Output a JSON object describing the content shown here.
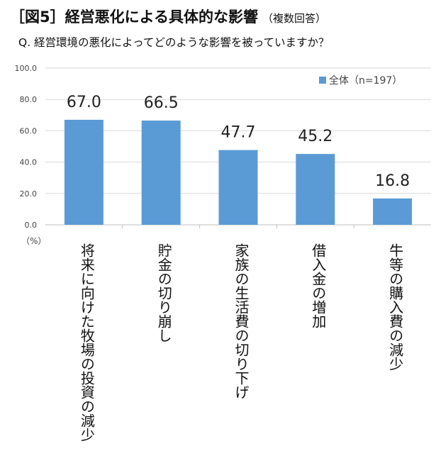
{
  "header": {
    "title": "［図5］経営悪化による具体的な影響",
    "title_note": "（複数回答）",
    "question": "Q. 経営環境の悪化によってどのような影響を被っていますか？"
  },
  "colors": {
    "bar": "#5b9bd5",
    "grid": "#d9d9d9",
    "axis": "#bfbfbf"
  },
  "chart_data": {
    "type": "bar",
    "unit_label": "（%）",
    "ylim": [
      0,
      100
    ],
    "yticks": [
      "0.0",
      "20.0",
      "40.0",
      "60.0",
      "80.0",
      "100.0"
    ],
    "grid": true,
    "legend_position": "top-right",
    "categories": [
      "将来に向けた牧場の投資の減少",
      "貯金の切り崩し",
      "家族の生活費の切り下げ",
      "借入金の増加",
      "牛等の購入費の減少"
    ],
    "series": [
      {
        "name": "全体（n=197）",
        "values": [
          67.0,
          66.5,
          47.7,
          45.2,
          16.8
        ]
      }
    ],
    "data_labels": [
      "67.0",
      "66.5",
      "47.7",
      "45.2",
      "16.8"
    ]
  }
}
